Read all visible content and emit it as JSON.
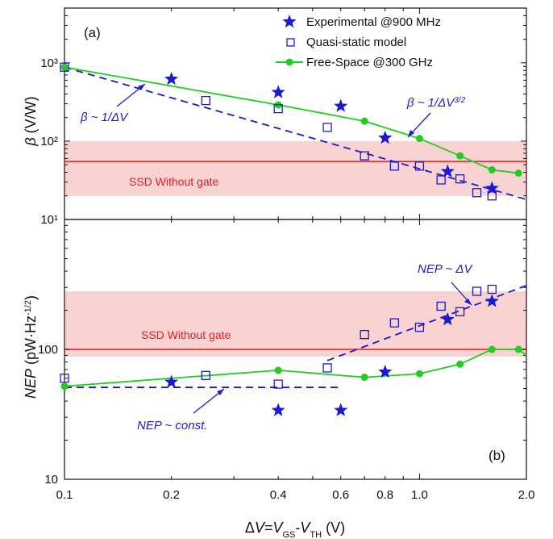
{
  "chart_data": [
    {
      "type": "scatter",
      "panel_label": "(a)",
      "xscale": "log",
      "yscale": "log",
      "xlim": [
        0.1,
        2.0
      ],
      "ylim": [
        10,
        5000
      ],
      "ylabel": "β (V/W)",
      "ytick_labels": [
        "10¹",
        "10²",
        "10³"
      ],
      "series": [
        {
          "name": "Experimental @900 MHz",
          "marker": "filled-star",
          "color": "#1a1acf",
          "x": [
            0.2,
            0.4,
            0.6,
            0.8,
            1.2,
            1.6
          ],
          "y": [
            620,
            420,
            280,
            110,
            41,
            25
          ]
        },
        {
          "name": "Quasi-static model",
          "marker": "open-square",
          "color": "#1a1acf",
          "x": [
            0.1,
            0.25,
            0.4,
            0.55,
            0.7,
            0.85,
            1.0,
            1.15,
            1.3,
            1.45,
            1.6
          ],
          "y": [
            880,
            330,
            260,
            150,
            65,
            48,
            48,
            32,
            33,
            22,
            20
          ]
        },
        {
          "name": "Free-Space @300 GHz",
          "marker": "filled-circle-line",
          "color": "#22cc22",
          "x": [
            0.1,
            0.4,
            0.7,
            1.0,
            1.3,
            1.6,
            1.9
          ],
          "y": [
            880,
            290,
            180,
            108,
            65,
            43,
            39
          ]
        }
      ],
      "reference_band": {
        "label": "SSD Without gate",
        "center": 55,
        "low": 20,
        "high": 100,
        "color": "#e02020"
      },
      "fit_line": {
        "x": [
          0.1,
          2.0
        ],
        "y": [
          880,
          18
        ],
        "color": "#1a1acf",
        "style": "dashed"
      },
      "annotations": [
        {
          "text_pre": "β ~ 1/ΔV",
          "text_sup": ""
        },
        {
          "text_pre": "β ~ 1/ΔV",
          "text_sup": "3/2"
        }
      ]
    },
    {
      "type": "scatter",
      "panel_label": "(b)",
      "xscale": "log",
      "yscale": "log",
      "xlim": [
        0.1,
        2.0
      ],
      "ylim": [
        10,
        1000
      ],
      "xlabel": "ΔV=VGS-VTH (V)",
      "ylabel": "NEP (pW·Hz^-1/2)",
      "xtick_labels": [
        "0.1",
        "0.2",
        "0.4",
        "0.6",
        "0.8",
        "1.0",
        "2.0"
      ],
      "ytick_labels": [
        "10",
        "100"
      ],
      "series": [
        {
          "name": "Experimental @900 MHz",
          "marker": "filled-star",
          "color": "#1a1acf",
          "x": [
            0.2,
            0.4,
            0.6,
            0.8,
            1.2,
            1.6
          ],
          "y": [
            56,
            34,
            34,
            67,
            170,
            235
          ]
        },
        {
          "name": "Quasi-static model",
          "marker": "open-square",
          "color": "#1a1acf",
          "x": [
            0.1,
            0.25,
            0.4,
            0.55,
            0.7,
            0.85,
            1.0,
            1.15,
            1.3,
            1.45,
            1.6
          ],
          "y": [
            60,
            63,
            54,
            72,
            130,
            160,
            148,
            215,
            195,
            280,
            290
          ]
        },
        {
          "name": "Free-Space @300 GHz",
          "marker": "filled-circle-line",
          "color": "#22cc22",
          "x": [
            0.1,
            0.4,
            0.7,
            1.0,
            1.3,
            1.6,
            1.9,
            2.0
          ],
          "y": [
            52,
            69,
            61,
            65,
            77,
            100,
            100,
            90
          ]
        }
      ],
      "reference_band": {
        "label": "SSD Without gate",
        "center": 100,
        "low": 88,
        "high": 280,
        "color": "#e02020"
      },
      "fit_lines": [
        {
          "x": [
            0.1,
            0.6
          ],
          "y": [
            51,
            51
          ],
          "color": "#1a1acf",
          "style": "dashed"
        },
        {
          "x": [
            0.55,
            2.0
          ],
          "y": [
            82,
            310
          ],
          "color": "#1a1acf",
          "style": "dashed"
        }
      ],
      "annotations": [
        {
          "text": "NEP ~ ΔV"
        },
        {
          "text": "NEP ~ const."
        }
      ]
    }
  ]
}
